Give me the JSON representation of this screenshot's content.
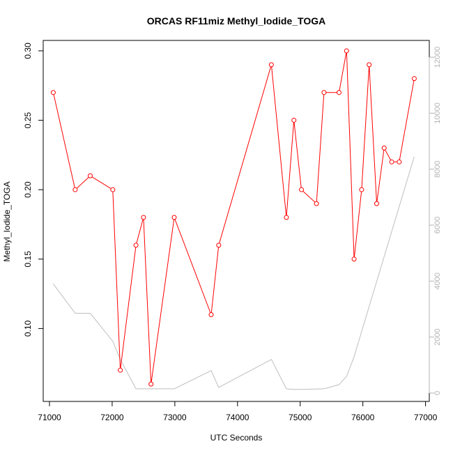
{
  "chart_data": {
    "type": "line",
    "title": "ORCAS RF11miz Methyl_Iodide_TOGA",
    "xlabel": "UTC Seconds",
    "ylabel": "Methyl_Iodide_TOGA",
    "xlim": [
      70900,
      77060
    ],
    "ylim": [
      0.0475,
      0.3075
    ],
    "y2lim": [
      -300,
      12600
    ],
    "x_ticks": [
      71000,
      72000,
      73000,
      74000,
      75000,
      76000,
      77000
    ],
    "y_ticks": [
      0.1,
      0.15,
      0.2,
      0.25,
      0.3
    ],
    "y_tick_labels": [
      "0.10",
      "0.15",
      "0.20",
      "0.25",
      "0.30"
    ],
    "y2_ticks": [
      0,
      2000,
      4000,
      6000,
      8000,
      10000,
      12000
    ],
    "grid": false,
    "series": [
      {
        "axis": "left",
        "color": "#ff0000",
        "marker": "open-circle",
        "x": [
          71060,
          71410,
          71650,
          72010,
          72130,
          72380,
          72500,
          72620,
          72990,
          73580,
          73700,
          74540,
          74780,
          74900,
          75020,
          75260,
          75380,
          75620,
          75740,
          75860,
          75980,
          76100,
          76220,
          76340,
          76460,
          76580,
          76820
        ],
        "y": [
          0.27,
          0.2,
          0.21,
          0.2,
          0.07,
          0.16,
          0.18,
          0.06,
          0.18,
          0.11,
          0.16,
          0.29,
          0.18,
          0.25,
          0.2,
          0.19,
          0.27,
          0.27,
          0.3,
          0.15,
          0.2,
          0.29,
          0.19,
          0.23,
          0.22,
          0.22,
          0.28
        ]
      },
      {
        "axis": "right",
        "color": "#bebebe",
        "marker": "none",
        "x": [
          71060,
          71410,
          71650,
          72010,
          72130,
          72380,
          72620,
          72990,
          73580,
          73700,
          74540,
          74780,
          74900,
          75020,
          75380,
          75620,
          75740,
          75860,
          75980,
          76820
        ],
        "y": [
          3900,
          2850,
          2850,
          1850,
          1200,
          150,
          150,
          150,
          800,
          200,
          1200,
          150,
          130,
          130,
          150,
          300,
          600,
          1300,
          2200,
          8450
        ]
      }
    ]
  }
}
